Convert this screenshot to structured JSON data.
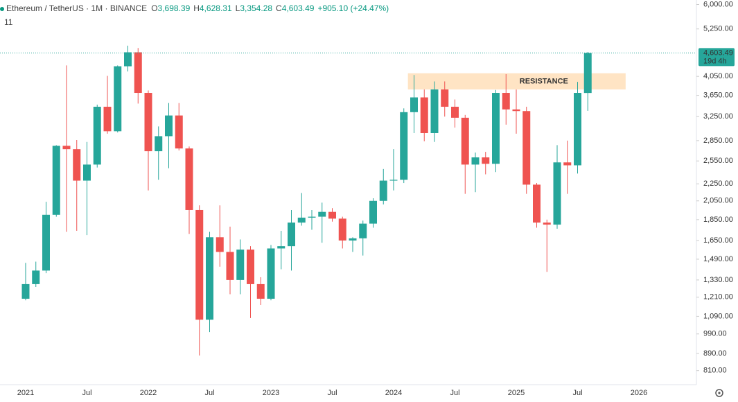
{
  "header": {
    "symbol": "Ethereum / TetherUS · 1M · BINANCE",
    "ohlc": [
      {
        "key": "O",
        "value": "3,698.39"
      },
      {
        "key": "H",
        "value": "4,628.31"
      },
      {
        "key": "L",
        "value": "3,354.28"
      },
      {
        "key": "C",
        "value": "4,603.49"
      }
    ],
    "change": "+905.10 (+24.47%)",
    "indicator": "11"
  },
  "chart_data": {
    "type": "candlestick",
    "log_scale": true,
    "up_color": "#26a69a",
    "down_color": "#ef5350",
    "categories": [
      "2021",
      null,
      null,
      null,
      null,
      null,
      "Jul",
      null,
      null,
      null,
      null,
      null,
      "2022",
      null,
      null,
      null,
      null,
      null,
      "Jul",
      null,
      null,
      null,
      null,
      null,
      "2023",
      null,
      null,
      null,
      null,
      null,
      "Jul",
      null,
      null,
      null,
      null,
      null,
      "2024",
      null,
      null,
      null,
      null,
      null,
      "Jul",
      null,
      null,
      null,
      null,
      null,
      "2025",
      null,
      null,
      null,
      null,
      null,
      "Jul",
      null,
      null,
      null,
      null,
      null,
      "2026"
    ],
    "open": [
      1200,
      1300,
      1400,
      1900,
      2770,
      2720,
      2290,
      2500,
      3430,
      3000,
      4280,
      4620,
      3700,
      2690,
      2920,
      3270,
      2730,
      1950,
      1070,
      1680,
      1550,
      1330,
      1570,
      1300,
      1200,
      1580,
      1600,
      1820,
      1870,
      1880,
      1930,
      1860,
      1650,
      1670,
      1810,
      2050,
      2290,
      2300,
      3330,
      3610,
      2970,
      3770,
      3430,
      3230,
      2500,
      2600,
      2510,
      3700,
      3380,
      3350,
      2240,
      1820,
      1800,
      2530,
      2490,
      3698.39,
      null,
      null,
      null,
      null,
      null
    ],
    "high": [
      1460,
      1470,
      2040,
      2780,
      4300,
      2860,
      2830,
      3470,
      4060,
      4300,
      4790,
      4730,
      3750,
      3080,
      3500,
      3500,
      2760,
      2000,
      1730,
      2000,
      1780,
      1660,
      1600,
      1350,
      1610,
      1740,
      1950,
      2140,
      1950,
      2030,
      1970,
      1880,
      1680,
      1840,
      2080,
      2440,
      2720,
      3400,
      4080,
      3770,
      3940,
      3940,
      3570,
      3280,
      2670,
      2680,
      3760,
      4100,
      3770,
      3430,
      2260,
      1850,
      2780,
      2850,
      3930,
      4628.31,
      null,
      null,
      null,
      null,
      null
    ],
    "low": [
      1190,
      1280,
      1380,
      1880,
      1730,
      1740,
      1700,
      2460,
      2960,
      2980,
      4160,
      3490,
      2170,
      2300,
      2450,
      2700,
      1710,
      880,
      1000,
      1430,
      1230,
      1230,
      1080,
      1160,
      1190,
      1410,
      1400,
      1790,
      1750,
      1630,
      1830,
      1580,
      1550,
      1520,
      1770,
      2010,
      2170,
      2260,
      2970,
      2840,
      2830,
      3250,
      3060,
      2130,
      2150,
      2370,
      2400,
      3110,
      2960,
      2130,
      1770,
      1390,
      1760,
      2130,
      2380,
      3354.28,
      null,
      null,
      null,
      null,
      null
    ],
    "close": [
      1300,
      1400,
      1900,
      2770,
      2720,
      2290,
      2500,
      3430,
      3000,
      4280,
      4620,
      3700,
      2690,
      2920,
      3270,
      2730,
      1950,
      1070,
      1680,
      1550,
      1330,
      1570,
      1300,
      1200,
      1580,
      1600,
      1820,
      1870,
      1880,
      1930,
      1860,
      1650,
      1670,
      1810,
      2050,
      2290,
      2300,
      3330,
      3610,
      2970,
      3770,
      3430,
      3230,
      2500,
      2600,
      2510,
      3700,
      3380,
      3350,
      2240,
      1820,
      1800,
      2530,
      2490,
      3700,
      4603.49,
      null,
      null,
      null,
      null,
      null
    ],
    "ylim": [
      750,
      6150
    ],
    "yticks": [
      {
        "value": 6000,
        "label": "6,000.00"
      },
      {
        "value": 5250,
        "label": "5,250.00"
      },
      {
        "value": 4050,
        "label": "4,050.00"
      },
      {
        "value": 3650,
        "label": "3,650.00"
      },
      {
        "value": 3250,
        "label": "3,250.00"
      },
      {
        "value": 2850,
        "label": "2,850.00"
      },
      {
        "value": 2550,
        "label": "2,550.00"
      },
      {
        "value": 2250,
        "label": "2,250.00"
      },
      {
        "value": 2050,
        "label": "2,050.00"
      },
      {
        "value": 1850,
        "label": "1,850.00"
      },
      {
        "value": 1650,
        "label": "1,650.00"
      },
      {
        "value": 1490,
        "label": "1,490.00"
      },
      {
        "value": 1330,
        "label": "1,330.00"
      },
      {
        "value": 1210,
        "label": "1,210.00"
      },
      {
        "value": 1090,
        "label": "1,090.00"
      },
      {
        "value": 990,
        "label": "990.00"
      },
      {
        "value": 890,
        "label": "890.00"
      },
      {
        "value": 810,
        "label": "810.00"
      }
    ],
    "last_price": {
      "value": 4603.49,
      "label": "4,603.49",
      "countdown": "19d 4h"
    },
    "resistance": {
      "label": "RESISTANCE",
      "range": [
        3770,
        4120
      ]
    }
  }
}
